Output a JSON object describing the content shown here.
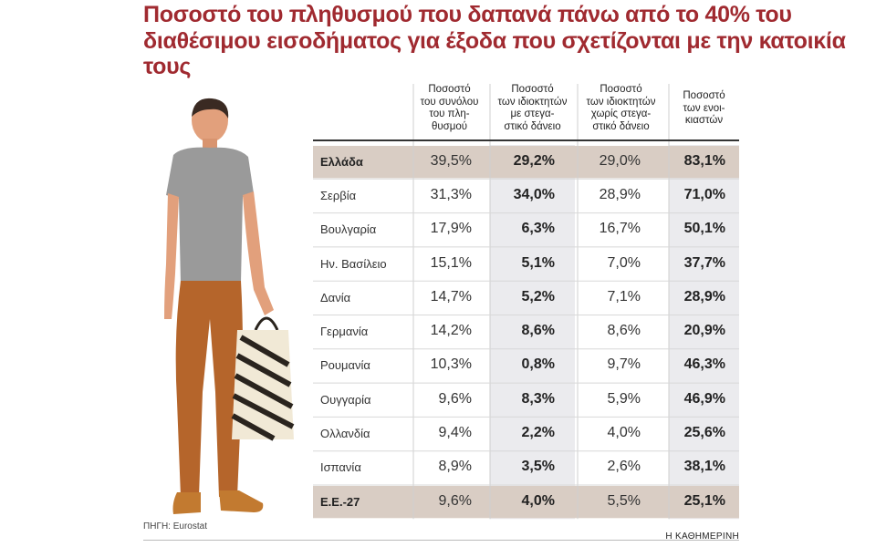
{
  "chart_data": {
    "type": "table",
    "title": "Ποσοστό του πληθυσμού που δαπανά πάνω από το 40% του διαθέσιμου εισοδήματος για έξοδα που σχετίζονται με την κατοικία τους",
    "columns": [
      "Ποσοστό\nτου συνόλου\nτου πλη-\nθυσμού",
      "Ποσοστό\nτων ιδιοκτητών\nμε στεγα-\nστικό δάνειο",
      "Ποσοστό\nτων ιδιοκτητών\nχωρίς στεγα-\nστικό δάνειο",
      "Ποσοστό\nτων ενοι-\nκιαστών"
    ],
    "rows": [
      {
        "country": "Ελλάδα",
        "values": [
          "39,5%",
          "29,2%",
          "29,0%",
          "83,1%"
        ]
      },
      {
        "country": "Σερβία",
        "values": [
          "31,3%",
          "34,0%",
          "28,9%",
          "71,0%"
        ]
      },
      {
        "country": "Βουλγαρία",
        "values": [
          "17,9%",
          "6,3%",
          "16,7%",
          "50,1%"
        ]
      },
      {
        "country": "Ην. Βασίλειο",
        "values": [
          "15,1%",
          "5,1%",
          "7,0%",
          "37,7%"
        ]
      },
      {
        "country": "Δανία",
        "values": [
          "14,7%",
          "5,2%",
          "7,1%",
          "28,9%"
        ]
      },
      {
        "country": "Γερμανία",
        "values": [
          "14,2%",
          "8,6%",
          "8,6%",
          "20,9%"
        ]
      },
      {
        "country": "Ρουμανία",
        "values": [
          "10,3%",
          "0,8%",
          "9,7%",
          "46,3%"
        ]
      },
      {
        "country": "Ουγγαρία",
        "values": [
          "9,6%",
          "8,3%",
          "5,9%",
          "46,9%"
        ]
      },
      {
        "country": "Ολλανδία",
        "values": [
          "9,4%",
          "2,2%",
          "4,0%",
          "25,6%"
        ]
      },
      {
        "country": "Ισπανία",
        "values": [
          "8,9%",
          "3,5%",
          "2,6%",
          "38,1%"
        ]
      },
      {
        "country": "Ε.Ε.-27",
        "values": [
          "9,6%",
          "4,0%",
          "5,5%",
          "25,1%"
        ]
      }
    ],
    "highlight_rows": [
      0,
      10
    ],
    "bold_columns": [
      1,
      3
    ]
  },
  "source": "ΠΗΓΗ: Eurostat",
  "brand": "Η ΚΑΘΗΜΕΡΙΝΗ",
  "colors": {
    "title": "#a02a30",
    "highlight_row": "#d9cdc4",
    "shaded_column": "#ebebee",
    "text": "#333333"
  },
  "illustration": {
    "subject": "man-with-shopping-bag",
    "shirt": "#9a9a9a",
    "trousers": "#b5652b",
    "skin": "#e2a07c",
    "hair": "#3a2a22",
    "shoes": "#c27a30",
    "bag": "#2a241e"
  }
}
